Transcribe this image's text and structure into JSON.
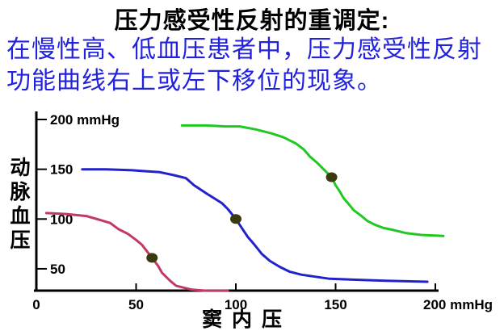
{
  "header": {
    "title": "压力感受性反射的重调定:",
    "line1": "在慢性高、低血压患者中，压力感受性反射",
    "line2": "功能曲线右上或左下移位的现象。"
  },
  "colors": {
    "title_text": "#000000",
    "intro_text": "#2222dd",
    "axis": "#000000",
    "set_point_dot": "#3a3a0e"
  },
  "chart_data": {
    "type": "line",
    "title": "",
    "xlabel": "窦内压",
    "ylabel": "动脉血压",
    "unit": "mmHg",
    "xlim": [
      0,
      210
    ],
    "ylim": [
      25,
      210
    ],
    "grid": false,
    "legend": "none",
    "x_ticks": [
      {
        "value": 0,
        "label": "0"
      },
      {
        "value": 50,
        "label": "50"
      },
      {
        "value": 100,
        "label": "100"
      },
      {
        "value": 150,
        "label": "150"
      },
      {
        "value": 200,
        "label": "200 mmHg"
      }
    ],
    "y_ticks": [
      {
        "value": 200,
        "label": "200 mmHg"
      },
      {
        "value": 150,
        "label": "150"
      },
      {
        "value": 100,
        "label": "100"
      },
      {
        "value": 50,
        "label": "50"
      }
    ],
    "set_point_color": "#3a3a0e",
    "series": [
      {
        "name": "pink-curve-left-shifted",
        "color": "#c23a64",
        "set_point": [
          58,
          61
        ],
        "points": [
          [
            5,
            106
          ],
          [
            15,
            105
          ],
          [
            25,
            103
          ],
          [
            32,
            99
          ],
          [
            37,
            96
          ],
          [
            41,
            90
          ],
          [
            46,
            85
          ],
          [
            50,
            79
          ],
          [
            53,
            74
          ],
          [
            58,
            61
          ],
          [
            61,
            53
          ],
          [
            63,
            46
          ],
          [
            67,
            38
          ],
          [
            70,
            33
          ],
          [
            74,
            31
          ],
          [
            78,
            29
          ],
          [
            85,
            28
          ],
          [
            96,
            28
          ]
        ]
      },
      {
        "name": "blue-curve-normal",
        "color": "#2222cc",
        "set_point": [
          100,
          100
        ],
        "points": [
          [
            23,
            150
          ],
          [
            35,
            150
          ],
          [
            48,
            149
          ],
          [
            55,
            148
          ],
          [
            62,
            147
          ],
          [
            69,
            144
          ],
          [
            75,
            141
          ],
          [
            79,
            134
          ],
          [
            85,
            126
          ],
          [
            89,
            121
          ],
          [
            93,
            116
          ],
          [
            96,
            110
          ],
          [
            100,
            100
          ],
          [
            103,
            91
          ],
          [
            106,
            82
          ],
          [
            109,
            75
          ],
          [
            113,
            65
          ],
          [
            117,
            58
          ],
          [
            122,
            52
          ],
          [
            127,
            47
          ],
          [
            133,
            44
          ],
          [
            140,
            42
          ],
          [
            147,
            40
          ],
          [
            160,
            39
          ],
          [
            175,
            38
          ],
          [
            196,
            37
          ]
        ]
      },
      {
        "name": "green-curve-right-shifted",
        "color": "#22c822",
        "set_point": [
          148,
          142
        ],
        "points": [
          [
            73,
            194
          ],
          [
            85,
            194
          ],
          [
            95,
            193
          ],
          [
            102,
            193
          ],
          [
            110,
            190
          ],
          [
            118,
            186
          ],
          [
            124,
            182
          ],
          [
            130,
            176
          ],
          [
            134,
            170
          ],
          [
            137,
            163
          ],
          [
            141,
            156
          ],
          [
            144,
            150
          ],
          [
            148,
            142
          ],
          [
            150,
            134
          ],
          [
            152,
            128
          ],
          [
            154,
            121
          ],
          [
            157,
            114
          ],
          [
            159,
            109
          ],
          [
            163,
            103
          ],
          [
            166,
            98
          ],
          [
            170,
            94
          ],
          [
            174,
            91
          ],
          [
            179,
            89
          ],
          [
            185,
            86
          ],
          [
            193,
            84
          ],
          [
            204,
            83
          ]
        ]
      }
    ]
  }
}
